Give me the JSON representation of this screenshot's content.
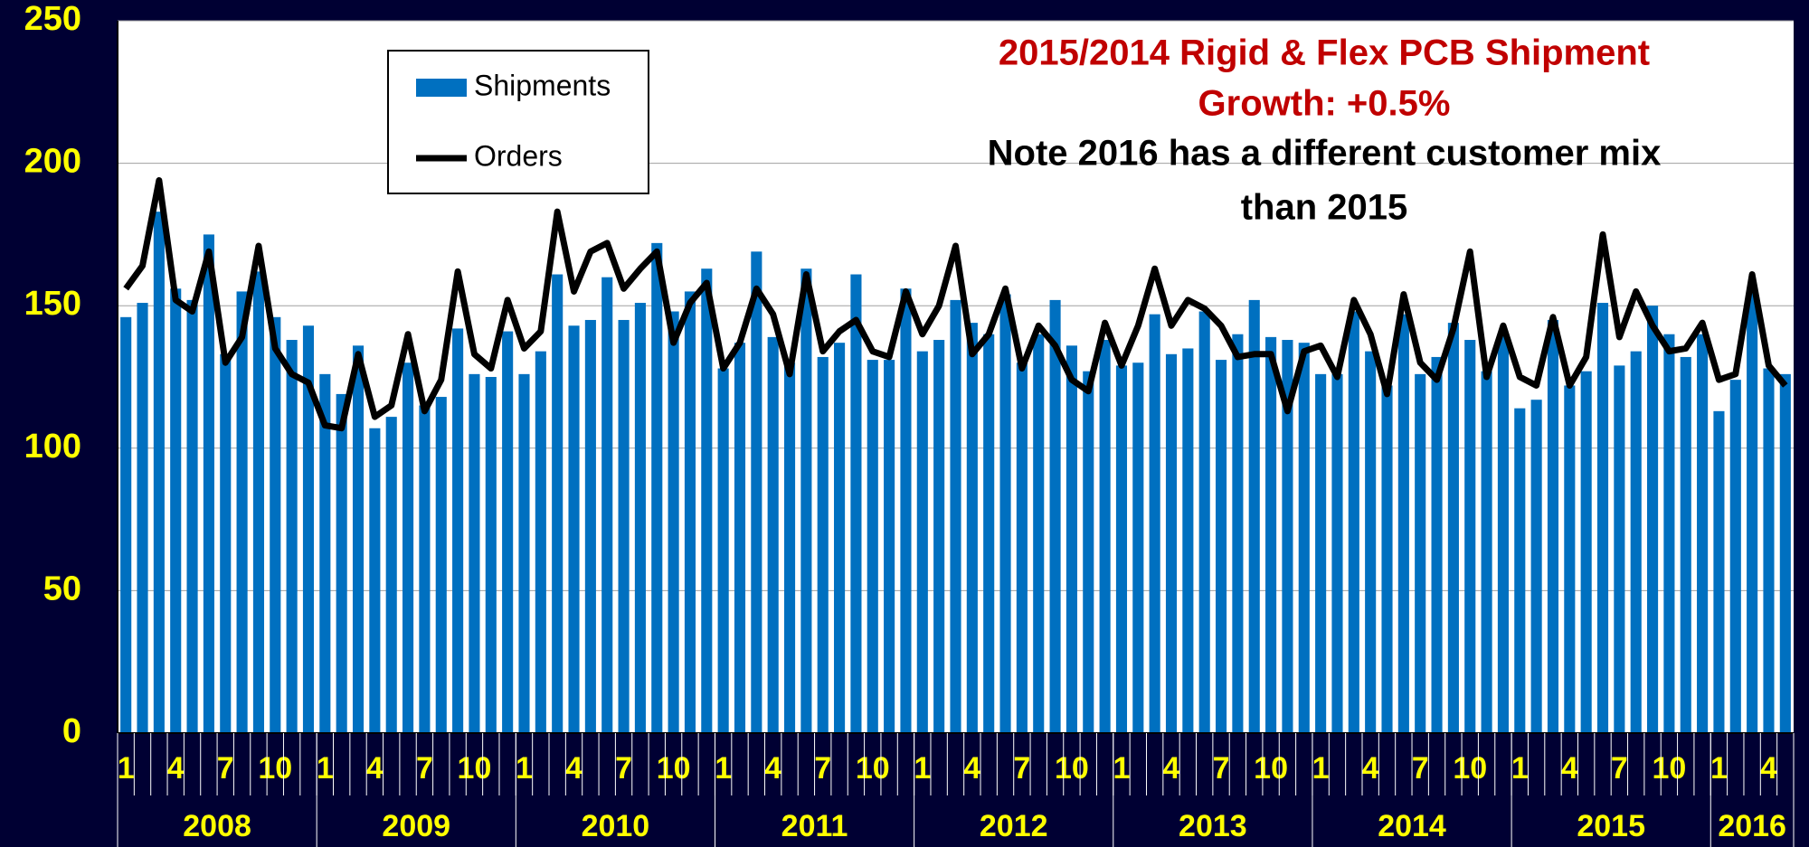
{
  "chart_data": {
    "type": "bar",
    "annotations": [
      {
        "text": "2015/2014 Rigid & Flex PCB Shipment",
        "color": "#c00000"
      },
      {
        "text": "Growth: +0.5%",
        "color": "#c00000"
      },
      {
        "text": "Note 2016 has a different customer mix",
        "color": "#000000"
      },
      {
        "text": "than 2015",
        "color": "#000000"
      }
    ],
    "categories": [
      "1",
      null,
      null,
      "4",
      null,
      null,
      "7",
      null,
      null,
      "10",
      null,
      null,
      "1",
      null,
      null,
      "4",
      null,
      null,
      "7",
      null,
      null,
      "10",
      null,
      null,
      "1",
      null,
      null,
      "4",
      null,
      null,
      "7",
      null,
      null,
      "10",
      null,
      null,
      "1",
      null,
      null,
      "4",
      null,
      null,
      "7",
      null,
      null,
      "10",
      null,
      null,
      "1",
      null,
      null,
      "4",
      null,
      null,
      "7",
      null,
      null,
      "10",
      null,
      null,
      "1",
      null,
      null,
      "4",
      null,
      null,
      "7",
      null,
      null,
      "10",
      null,
      null,
      "1",
      null,
      null,
      "4",
      null,
      null,
      "7",
      null,
      null,
      "10",
      null,
      null,
      "1",
      null,
      null,
      "4",
      null,
      null,
      "7",
      null,
      null,
      "10",
      null,
      null,
      "1",
      null,
      null,
      "4",
      null
    ],
    "years": [
      "2008",
      "2009",
      "2010",
      "2011",
      "2012",
      "2013",
      "2014",
      "2015",
      "2016"
    ],
    "series": [
      {
        "name": "Shipments",
        "type": "bar",
        "color": "#0070c0",
        "values": [
          146,
          151,
          183,
          156,
          152,
          175,
          133,
          155,
          162,
          146,
          138,
          143,
          126,
          119,
          136,
          107,
          111,
          130,
          115,
          118,
          142,
          126,
          125,
          141,
          126,
          134,
          161,
          143,
          145,
          160,
          145,
          151,
          172,
          148,
          155,
          163,
          128,
          137,
          169,
          139,
          130,
          163,
          132,
          137,
          161,
          131,
          131,
          156,
          134,
          138,
          152,
          144,
          140,
          154,
          130,
          140,
          152,
          136,
          127,
          138,
          129,
          130,
          147,
          133,
          135,
          148,
          131,
          140,
          152,
          139,
          138,
          137,
          126,
          126,
          148,
          134,
          122,
          147,
          126,
          132,
          144,
          138,
          127,
          140,
          114,
          117,
          145,
          122,
          127,
          151,
          129,
          134,
          150,
          140,
          132,
          140,
          113,
          124,
          155,
          128,
          126
        ]
      },
      {
        "name": "Orders",
        "type": "line",
        "color": "#000000",
        "values": [
          156,
          164,
          194,
          152,
          148,
          169,
          130,
          139,
          171,
          135,
          126,
          123,
          108,
          107,
          133,
          111,
          115,
          140,
          113,
          124,
          162,
          133,
          128,
          152,
          135,
          141,
          183,
          155,
          169,
          172,
          156,
          163,
          169,
          137,
          151,
          158,
          128,
          137,
          156,
          147,
          126,
          161,
          134,
          141,
          145,
          134,
          132,
          155,
          140,
          150,
          171,
          133,
          140,
          156,
          128,
          143,
          136,
          124,
          120,
          144,
          129,
          143,
          163,
          143,
          152,
          149,
          143,
          132,
          133,
          133,
          113,
          134,
          136,
          125,
          152,
          140,
          119,
          154,
          130,
          124,
          142,
          169,
          125,
          143,
          125,
          122,
          146,
          122,
          132,
          175,
          139,
          155,
          143,
          134,
          135,
          144,
          124,
          126,
          161,
          129,
          122
        ]
      }
    ],
    "ylim": [
      0,
      250
    ],
    "yticks": [
      0,
      50,
      100,
      150,
      200,
      250
    ],
    "grid": true
  }
}
